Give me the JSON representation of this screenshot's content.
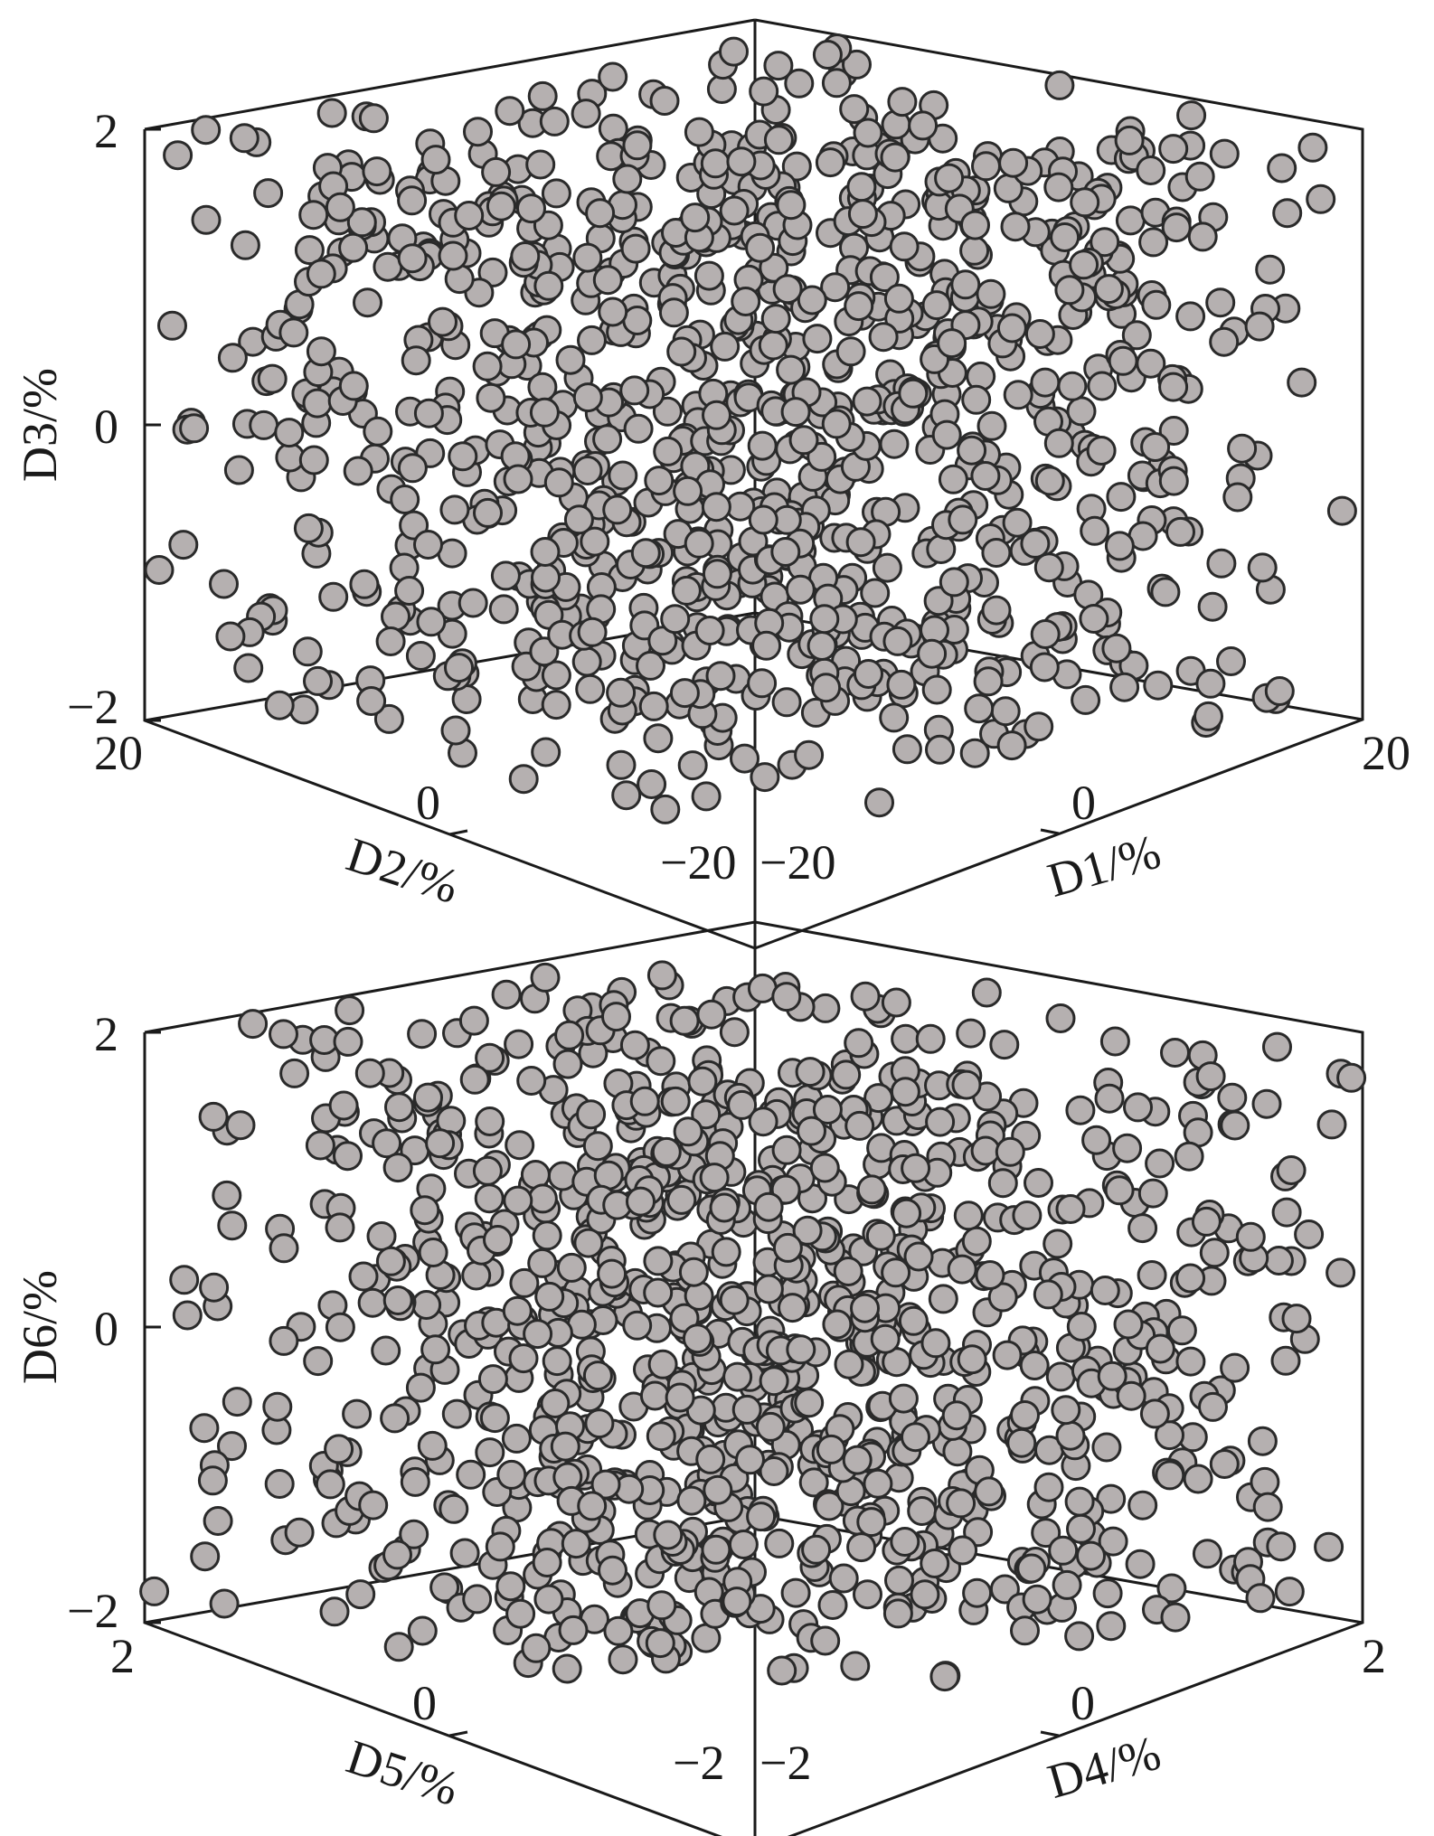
{
  "chart_data": [
    {
      "type": "scatter",
      "projection": "3d",
      "xlabel": "D1/%",
      "ylabel": "D2/%",
      "zlabel": "D3/%",
      "xlim": [
        -20,
        20
      ],
      "ylim": [
        -20,
        20
      ],
      "zlim": [
        -2,
        2
      ],
      "x_ticks": [
        "−20",
        "0",
        "20"
      ],
      "y_ticks": [
        "20",
        "0",
        "−20"
      ],
      "z_ticks": [
        "2",
        "0",
        "−2"
      ],
      "grid": false,
      "marker_color": "#b5b0b0",
      "marker_edge_color": "#2a2a2a",
      "sampling": "uniform random",
      "point_count_estimate": 1000
    },
    {
      "type": "scatter",
      "projection": "3d",
      "xlabel": "D4/%",
      "ylabel": "D5/%",
      "zlabel": "D6/%",
      "xlim": [
        -2,
        2
      ],
      "ylim": [
        -2,
        2
      ],
      "zlim": [
        -2,
        2
      ],
      "x_ticks": [
        "−2",
        "0",
        "2"
      ],
      "y_ticks": [
        "2",
        "0",
        "−2"
      ],
      "z_ticks": [
        "2",
        "0",
        "−2"
      ],
      "grid": false,
      "marker_color": "#b5b0b0",
      "marker_edge_color": "#2a2a2a",
      "sampling": "uniform random",
      "point_count_estimate": 1000
    }
  ]
}
